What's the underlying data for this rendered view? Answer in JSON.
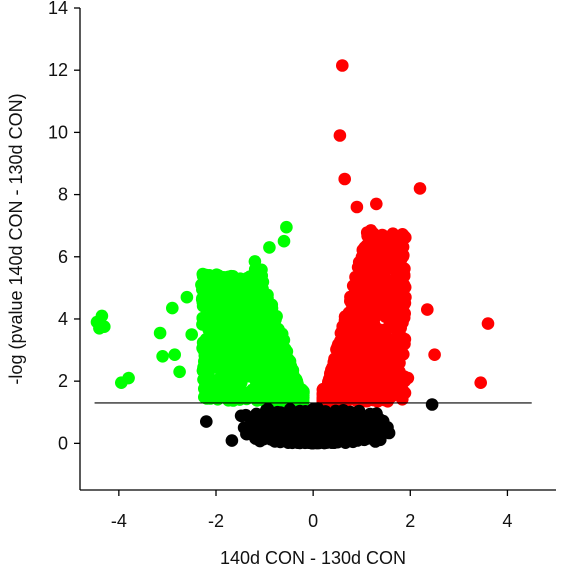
{
  "chart_data": {
    "type": "scatter",
    "title": "",
    "xlabel": "140d CON - 130d CON",
    "ylabel": "-log (pvalue 140d CON - 130d CON)",
    "xlim": [
      -4.8,
      5
    ],
    "ylim": [
      -1.5,
      14
    ],
    "xticks": [
      -4,
      -2,
      0,
      2,
      4
    ],
    "yticks": [
      0,
      2,
      4,
      6,
      8,
      10,
      12,
      14
    ],
    "grid": false,
    "legend": "none",
    "threshold_line": {
      "y": 1.3,
      "x_from": -4.5,
      "x_to": 4.5
    },
    "colors": {
      "down": "#00ff00",
      "up": "#ff0000",
      "ns": "#000000"
    },
    "outliers": [
      {
        "group": "up",
        "x": 0.6,
        "y": 12.15
      },
      {
        "group": "up",
        "x": 0.55,
        "y": 9.9
      },
      {
        "group": "up",
        "x": 0.65,
        "y": 8.5
      },
      {
        "group": "up",
        "x": 2.2,
        "y": 8.2
      },
      {
        "group": "up",
        "x": 3.6,
        "y": 3.85
      },
      {
        "group": "up",
        "x": 3.45,
        "y": 1.95
      },
      {
        "group": "up",
        "x": 2.5,
        "y": 2.85
      },
      {
        "group": "up",
        "x": 2.35,
        "y": 4.3
      },
      {
        "group": "up",
        "x": 1.95,
        "y": 2.1
      },
      {
        "group": "up",
        "x": 1.9,
        "y": 4.7
      },
      {
        "group": "up",
        "x": 1.7,
        "y": 6.6
      },
      {
        "group": "up",
        "x": 1.5,
        "y": 5.3
      },
      {
        "group": "up",
        "x": 1.3,
        "y": 7.7
      },
      {
        "group": "up",
        "x": 0.9,
        "y": 7.6
      },
      {
        "group": "down",
        "x": -4.35,
        "y": 4.1
      },
      {
        "group": "down",
        "x": -4.45,
        "y": 3.9
      },
      {
        "group": "down",
        "x": -4.3,
        "y": 3.75
      },
      {
        "group": "down",
        "x": -4.4,
        "y": 3.7
      },
      {
        "group": "down",
        "x": -3.8,
        "y": 2.1
      },
      {
        "group": "down",
        "x": -3.95,
        "y": 1.95
      },
      {
        "group": "down",
        "x": -3.15,
        "y": 3.55
      },
      {
        "group": "down",
        "x": -3.1,
        "y": 2.8
      },
      {
        "group": "down",
        "x": -2.9,
        "y": 4.35
      },
      {
        "group": "down",
        "x": -2.85,
        "y": 2.85
      },
      {
        "group": "down",
        "x": -2.75,
        "y": 2.3
      },
      {
        "group": "down",
        "x": -2.6,
        "y": 4.7
      },
      {
        "group": "down",
        "x": -2.5,
        "y": 3.5
      },
      {
        "group": "down",
        "x": -2.3,
        "y": 5.1
      },
      {
        "group": "down",
        "x": -1.2,
        "y": 5.85
      },
      {
        "group": "down",
        "x": -0.9,
        "y": 6.3
      },
      {
        "group": "down",
        "x": -0.55,
        "y": 6.95
      },
      {
        "group": "down",
        "x": -0.6,
        "y": 6.5
      },
      {
        "group": "ns",
        "x": -2.2,
        "y": 0.7
      },
      {
        "group": "ns",
        "x": 2.45,
        "y": 1.25
      }
    ],
    "clouds": [
      {
        "group": "down",
        "count": 900,
        "x_range": [
          -2.3,
          -0.2
        ],
        "y_range": [
          1.35,
          5.6
        ]
      },
      {
        "group": "up",
        "count": 900,
        "x_range": [
          0.2,
          1.9
        ],
        "y_range": [
          1.35,
          7.0
        ]
      },
      {
        "group": "ns",
        "count": 1400,
        "x_range": [
          -2.0,
          2.0
        ],
        "y_range": [
          0.0,
          1.3
        ]
      }
    ]
  }
}
